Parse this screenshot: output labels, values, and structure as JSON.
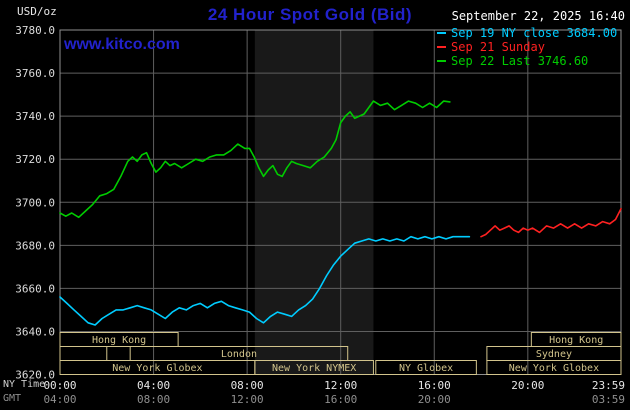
{
  "header": {
    "units": "USD/oz",
    "title": "24 Hour Spot Gold (Bid)",
    "datetime": "September 22, 2025 16:40",
    "watermark": "www.kitco.com",
    "legend": [
      {
        "label": "Sep 19 NY close 3684.00",
        "color": "#00ccff"
      },
      {
        "label": "Sep 21 Sunday",
        "color": "#ff2121"
      },
      {
        "label": "Sep 22 Last 3746.60",
        "color": "#00cc00"
      }
    ]
  },
  "axes": {
    "ny_label": "NY Time",
    "gmt_label": "GMT",
    "y_ticks": [
      {
        "value": 3780,
        "label": "3780.0"
      },
      {
        "value": 3760,
        "label": "3760.0"
      },
      {
        "value": 3740,
        "label": "3740.0"
      },
      {
        "value": 3720,
        "label": "3720.0"
      },
      {
        "value": 3700,
        "label": "3700.0"
      },
      {
        "value": 3680,
        "label": "3680.0"
      },
      {
        "value": 3660,
        "label": "3660.0"
      },
      {
        "value": 3640,
        "label": "3640.0"
      },
      {
        "value": 3620,
        "label": "3620.0"
      }
    ],
    "x_ticks": [
      {
        "hour": 0,
        "ny": "00:00",
        "gmt": "04:00"
      },
      {
        "hour": 4,
        "ny": "04:00",
        "gmt": "08:00"
      },
      {
        "hour": 8,
        "ny": "08:00",
        "gmt": "12:00"
      },
      {
        "hour": 12,
        "ny": "12:00",
        "gmt": "16:00"
      },
      {
        "hour": 16,
        "ny": "16:00",
        "gmt": "20:00"
      },
      {
        "hour": 20,
        "ny": "20:00",
        "gmt": ""
      },
      {
        "hour": 23.983,
        "ny": "23:59",
        "gmt": "03:59"
      }
    ]
  },
  "sessions": {
    "color": "#d2c48c",
    "rows": [
      {
        "label": "Hong Kong",
        "row": 0,
        "start": 0,
        "end": 5.05
      },
      {
        "label": "Hong Kong",
        "row": 0,
        "start": 20.15,
        "end": 23.983
      },
      {
        "label": "",
        "row": 1,
        "start": 0,
        "end": 2
      },
      {
        "label": "London",
        "row": 1,
        "start": 3,
        "end": 12.3
      },
      {
        "label": "Sydney",
        "row": 1,
        "start": 18.25,
        "end": 23.983
      },
      {
        "label": "New York Globex",
        "row": 2,
        "start": 0,
        "end": 8.33
      },
      {
        "label": "New York NYMEX",
        "row": 2,
        "start": 8.33,
        "end": 13.4
      },
      {
        "label": "NY Globex",
        "row": 2,
        "start": 13.5,
        "end": 17.8
      },
      {
        "label": "New York Globex",
        "row": 2,
        "start": 18.25,
        "end": 23.983
      }
    ]
  },
  "chart_data": {
    "type": "line",
    "title": "24 Hour Spot Gold (Bid)",
    "xlabel": "NY Time (hours, 00:00-23:59)",
    "ylabel": "USD/oz",
    "xlim": [
      0,
      23.983
    ],
    "ylim": [
      3620,
      3780
    ],
    "y_tick_interval": 20,
    "grid": true,
    "grid_color": "#5f5f5f",
    "border_color": "#909090",
    "background": "#000000",
    "legend_position": "top-right",
    "nymex_band": {
      "start": 8.33,
      "end": 13.4,
      "color": "#191919"
    },
    "series": [
      {
        "name": "Sep 19 NY close",
        "close": 3684.0,
        "color": "#00ccff",
        "points": [
          [
            0,
            3656
          ],
          [
            0.3,
            3653
          ],
          [
            0.6,
            3650
          ],
          [
            0.9,
            3647
          ],
          [
            1.2,
            3644
          ],
          [
            1.5,
            3643
          ],
          [
            1.8,
            3646
          ],
          [
            2.1,
            3648
          ],
          [
            2.4,
            3650
          ],
          [
            2.7,
            3650
          ],
          [
            3,
            3651
          ],
          [
            3.3,
            3652
          ],
          [
            3.6,
            3651
          ],
          [
            3.9,
            3650
          ],
          [
            4.2,
            3648
          ],
          [
            4.5,
            3646
          ],
          [
            4.8,
            3649
          ],
          [
            5.1,
            3651
          ],
          [
            5.4,
            3650
          ],
          [
            5.7,
            3652
          ],
          [
            6,
            3653
          ],
          [
            6.3,
            3651
          ],
          [
            6.6,
            3653
          ],
          [
            6.9,
            3654
          ],
          [
            7.2,
            3652
          ],
          [
            7.5,
            3651
          ],
          [
            7.8,
            3650
          ],
          [
            8.1,
            3649
          ],
          [
            8.4,
            3646
          ],
          [
            8.7,
            3644
          ],
          [
            9,
            3647
          ],
          [
            9.3,
            3649
          ],
          [
            9.6,
            3648
          ],
          [
            9.9,
            3647
          ],
          [
            10.2,
            3650
          ],
          [
            10.5,
            3652
          ],
          [
            10.8,
            3655
          ],
          [
            11.1,
            3660
          ],
          [
            11.4,
            3666
          ],
          [
            11.7,
            3671
          ],
          [
            12,
            3675
          ],
          [
            12.3,
            3678
          ],
          [
            12.6,
            3681
          ],
          [
            12.9,
            3682
          ],
          [
            13.2,
            3683
          ],
          [
            13.5,
            3682
          ],
          [
            13.8,
            3683
          ],
          [
            14.1,
            3682
          ],
          [
            14.4,
            3683
          ],
          [
            14.7,
            3682
          ],
          [
            15,
            3684
          ],
          [
            15.3,
            3683
          ],
          [
            15.6,
            3684
          ],
          [
            15.9,
            3683
          ],
          [
            16.2,
            3684
          ],
          [
            16.5,
            3683
          ],
          [
            16.8,
            3684
          ],
          [
            17.1,
            3684
          ],
          [
            17.5,
            3684
          ]
        ]
      },
      {
        "name": "Sep 21 Sunday",
        "color": "#ff2121",
        "points": [
          [
            18,
            3684
          ],
          [
            18.2,
            3685
          ],
          [
            18.4,
            3687
          ],
          [
            18.6,
            3689
          ],
          [
            18.8,
            3687
          ],
          [
            19,
            3688
          ],
          [
            19.2,
            3689
          ],
          [
            19.4,
            3687
          ],
          [
            19.6,
            3686
          ],
          [
            19.8,
            3688
          ],
          [
            20,
            3687
          ],
          [
            20.2,
            3688
          ],
          [
            20.5,
            3686
          ],
          [
            20.8,
            3689
          ],
          [
            21.1,
            3688
          ],
          [
            21.4,
            3690
          ],
          [
            21.7,
            3688
          ],
          [
            22,
            3690
          ],
          [
            22.3,
            3688
          ],
          [
            22.6,
            3690
          ],
          [
            22.9,
            3689
          ],
          [
            23.2,
            3691
          ],
          [
            23.5,
            3690
          ],
          [
            23.75,
            3692
          ],
          [
            23.983,
            3697
          ]
        ]
      },
      {
        "name": "Sep 22 Last",
        "last": 3746.6,
        "color": "#00cc00",
        "points": [
          [
            0,
            3695
          ],
          [
            0.25,
            3693.5
          ],
          [
            0.5,
            3695
          ],
          [
            0.8,
            3693
          ],
          [
            1.1,
            3696
          ],
          [
            1.4,
            3699
          ],
          [
            1.7,
            3703
          ],
          [
            2,
            3704
          ],
          [
            2.3,
            3706
          ],
          [
            2.6,
            3712
          ],
          [
            2.9,
            3719
          ],
          [
            3.1,
            3721
          ],
          [
            3.3,
            3719
          ],
          [
            3.5,
            3722
          ],
          [
            3.7,
            3723
          ],
          [
            3.9,
            3718
          ],
          [
            4.1,
            3714
          ],
          [
            4.3,
            3716
          ],
          [
            4.5,
            3719
          ],
          [
            4.7,
            3717
          ],
          [
            4.9,
            3718
          ],
          [
            5.2,
            3716
          ],
          [
            5.5,
            3718
          ],
          [
            5.8,
            3720
          ],
          [
            6.1,
            3719
          ],
          [
            6.4,
            3721
          ],
          [
            6.7,
            3722
          ],
          [
            7,
            3722
          ],
          [
            7.3,
            3724
          ],
          [
            7.6,
            3727
          ],
          [
            7.9,
            3725
          ],
          [
            8.1,
            3725
          ],
          [
            8.3,
            3721
          ],
          [
            8.5,
            3716
          ],
          [
            8.7,
            3712
          ],
          [
            8.9,
            3715
          ],
          [
            9.1,
            3717
          ],
          [
            9.3,
            3713
          ],
          [
            9.5,
            3712
          ],
          [
            9.7,
            3716
          ],
          [
            9.9,
            3719
          ],
          [
            10.1,
            3718
          ],
          [
            10.4,
            3717
          ],
          [
            10.7,
            3716
          ],
          [
            11,
            3719
          ],
          [
            11.3,
            3721
          ],
          [
            11.6,
            3725
          ],
          [
            11.8,
            3729
          ],
          [
            12,
            3737
          ],
          [
            12.2,
            3740
          ],
          [
            12.4,
            3742
          ],
          [
            12.6,
            3739
          ],
          [
            12.8,
            3740
          ],
          [
            13,
            3741
          ],
          [
            13.2,
            3744
          ],
          [
            13.4,
            3747
          ],
          [
            13.7,
            3745
          ],
          [
            14,
            3746
          ],
          [
            14.3,
            3743
          ],
          [
            14.6,
            3745
          ],
          [
            14.9,
            3747
          ],
          [
            15.2,
            3746
          ],
          [
            15.5,
            3744
          ],
          [
            15.8,
            3746
          ],
          [
            16.1,
            3744
          ],
          [
            16.4,
            3747
          ],
          [
            16.67,
            3746.6
          ]
        ]
      }
    ]
  }
}
